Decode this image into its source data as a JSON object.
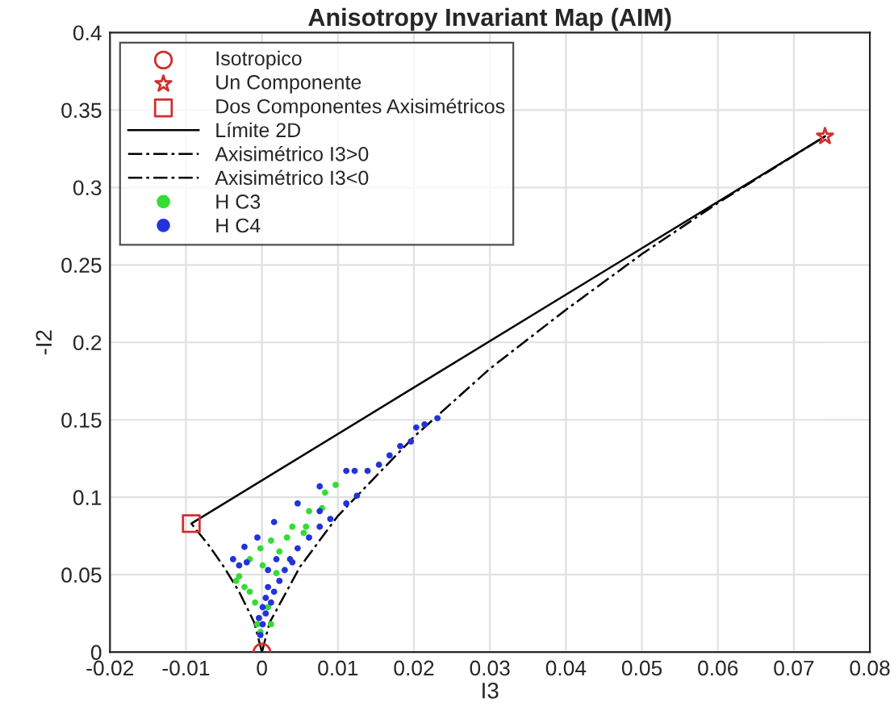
{
  "chart_data": {
    "type": "scatter",
    "title": "Anisotropy Invariant Map (AIM)",
    "xlabel": "I3",
    "ylabel": "-I2",
    "xlim": [
      -0.02,
      0.08
    ],
    "ylim": [
      0,
      0.4
    ],
    "xticks": [
      -0.02,
      -0.01,
      0,
      0.01,
      0.02,
      0.03,
      0.04,
      0.05,
      0.06,
      0.07,
      0.08
    ],
    "yticks": [
      0,
      0.05,
      0.1,
      0.15,
      0.2,
      0.25,
      0.3,
      0.35,
      0.4
    ],
    "grid": true,
    "legend": "top left",
    "series": [
      {
        "name": "Isotropico",
        "marker": "circle",
        "color": "#d03030",
        "x": [
          0
        ],
        "values": [
          0
        ]
      },
      {
        "name": "Un Componente",
        "marker": "star",
        "color": "#d03030",
        "x": [
          0.0741
        ],
        "values": [
          0.333
        ]
      },
      {
        "name": "Dos Componentes Axisimétricos",
        "marker": "square",
        "color": "#d03030",
        "x": [
          -0.0093
        ],
        "values": [
          0.083
        ]
      },
      {
        "name": "Límite 2D",
        "type": "line",
        "line_style": "solid",
        "marker": "none",
        "color": "#000000",
        "x": [
          -0.0093,
          0.0741
        ],
        "values": [
          0.083,
          0.333
        ]
      },
      {
        "name": "Axisimétrico I3>0",
        "type": "line",
        "line_style": "dashed",
        "marker": "none",
        "color": "#000000",
        "x": [
          0,
          0.001,
          0.005,
          0.01,
          0.02,
          0.03,
          0.04,
          0.05,
          0.06,
          0.0741
        ],
        "values": [
          0,
          0.019,
          0.055,
          0.088,
          0.139,
          0.183,
          0.221,
          0.257,
          0.29,
          0.333
        ]
      },
      {
        "name": "Axisimétrico I3<0",
        "type": "line",
        "line_style": "dashed",
        "marker": "none",
        "color": "#000000",
        "x": [
          0,
          -0.001,
          -0.003,
          -0.005,
          -0.007,
          -0.0093
        ],
        "values": [
          0,
          0.019,
          0.039,
          0.055,
          0.069,
          0.083
        ]
      },
      {
        "name": "H C3",
        "marker": "circle",
        "color": "#33dd33",
        "x": [
          0.0097,
          0.0083,
          0.0079,
          0.0062,
          0.0058,
          0.004,
          0.0033,
          0.0012,
          -0.0002,
          -0.0016,
          -0.0034,
          -0.0023,
          -0.0016,
          -0.0009,
          -0.0006,
          -0.0002,
          0.0008,
          0.0019,
          0.0055,
          0.0023,
          0.0001,
          -0.003,
          0.0012
        ],
        "values": [
          0.108,
          0.103,
          0.093,
          0.091,
          0.081,
          0.081,
          0.074,
          0.072,
          0.067,
          0.06,
          0.046,
          0.042,
          0.039,
          0.032,
          0.018,
          0.013,
          0.029,
          0.051,
          0.077,
          0.065,
          0.056,
          0.049,
          0.018
        ]
      },
      {
        "name": "H C4",
        "marker": "circle",
        "color": "#2233dd",
        "x": [
          0.0231,
          0.0214,
          0.0203,
          0.0196,
          0.0182,
          0.0168,
          0.0154,
          0.0139,
          0.0122,
          0.0111,
          0.0125,
          0.0111,
          0.009,
          0.0076,
          0.0076,
          0.0062,
          0.0047,
          0.0037,
          0.0047,
          0.0076,
          0.0016,
          -0.0006,
          -0.0023,
          -0.0038,
          -0.003,
          -0.002,
          -0.0002,
          0.0001,
          0.0005,
          0.0012,
          0.0016,
          0.0023,
          0.003,
          0.004,
          0.0008,
          0.0005,
          0.0019,
          0.0008,
          0.0001,
          -0.0004
        ],
        "values": [
          0.151,
          0.147,
          0.145,
          0.136,
          0.133,
          0.127,
          0.121,
          0.117,
          0.117,
          0.117,
          0.101,
          0.096,
          0.086,
          0.081,
          0.091,
          0.074,
          0.067,
          0.06,
          0.096,
          0.107,
          0.084,
          0.074,
          0.068,
          0.06,
          0.056,
          0.058,
          0.011,
          0.018,
          0.025,
          0.032,
          0.039,
          0.046,
          0.053,
          0.058,
          0.042,
          0.035,
          0.06,
          0.053,
          0.029,
          0.022
        ]
      }
    ]
  }
}
